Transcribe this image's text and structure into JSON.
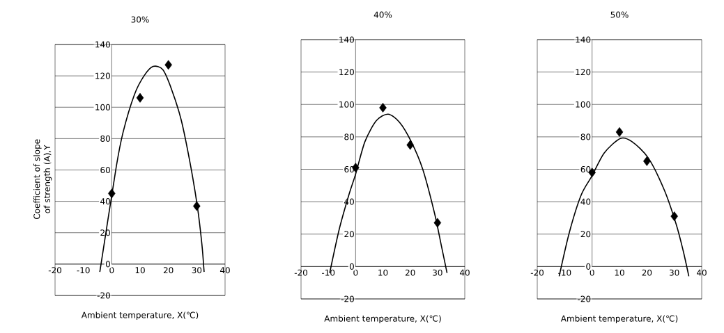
{
  "chart_data": [
    {
      "type": "scatter",
      "title": "30%",
      "xlabel": "Ambient temperature, X(℃)",
      "ylabel": "Coefficient of slope of strength (A),Y",
      "xlim": [
        -20,
        40
      ],
      "ylim": [
        -20,
        140
      ],
      "xticks": [
        -20,
        -10,
        0,
        10,
        20,
        30,
        40
      ],
      "yticks": [
        -20,
        0,
        20,
        40,
        60,
        80,
        100,
        120,
        140
      ],
      "grid": "y",
      "series": [
        {
          "type": "scatter",
          "marker": "diamond",
          "color": "#000000",
          "x": [
            0,
            10,
            20,
            30
          ],
          "values": [
            45,
            106,
            127,
            37
          ]
        },
        {
          "type": "line",
          "marker": "none",
          "line_style": "solid",
          "color": "#000000",
          "x": [
            -4.2,
            1.6,
            4,
            8,
            11.4,
            14.6,
            18,
            21,
            24.5,
            27.7,
            30.2,
            31.8,
            32.6
          ],
          "values": [
            -5,
            62,
            84,
            108,
            120,
            126,
            124,
            112,
            92,
            64,
            37,
            13,
            -5
          ]
        }
      ]
    },
    {
      "type": "scatter",
      "title": "40%",
      "xlabel": "Ambient temperature, X(℃)",
      "xlim": [
        -20,
        40
      ],
      "ylim": [
        -20,
        140
      ],
      "xticks": [
        -20,
        -10,
        0,
        10,
        20,
        30,
        40
      ],
      "yticks": [
        -20,
        0,
        20,
        40,
        60,
        80,
        100,
        120,
        140
      ],
      "grid": "y",
      "series": [
        {
          "type": "scatter",
          "marker": "diamond",
          "color": "#000000",
          "x": [
            0,
            10,
            20,
            30
          ],
          "values": [
            61,
            98,
            75,
            27
          ]
        },
        {
          "type": "line",
          "marker": "none",
          "line_style": "solid",
          "color": "#000000",
          "x": [
            -9.5,
            -6,
            -2.5,
            0,
            3.4,
            7.6,
            11.9,
            16.1,
            20.4,
            24.6,
            28.9,
            31.4,
            33.5
          ],
          "values": [
            -4,
            23,
            44,
            57,
            77,
            90,
            94,
            89,
            77,
            60,
            33,
            13,
            -4
          ]
        }
      ]
    },
    {
      "type": "scatter",
      "title": "50%",
      "xlabel": "Ambient temperature, X(℃)",
      "xlim": [
        -20,
        40
      ],
      "ylim": [
        -20,
        140
      ],
      "xticks": [
        -20,
        -10,
        0,
        10,
        20,
        30,
        40
      ],
      "yticks": [
        -20,
        0,
        20,
        40,
        60,
        80,
        100,
        120,
        140
      ],
      "grid": "y",
      "series": [
        {
          "type": "scatter",
          "marker": "diamond",
          "color": "#000000",
          "x": [
            0,
            10,
            20,
            30
          ],
          "values": [
            58,
            83,
            65,
            31
          ]
        },
        {
          "type": "line",
          "marker": "none",
          "line_style": "solid",
          "color": "#000000",
          "x": [
            -12,
            -8.3,
            -4,
            0,
            4.4,
            10.3,
            14.6,
            20.5,
            26.4,
            30.7,
            33.2,
            35.3
          ],
          "values": [
            -6,
            21,
            44,
            56,
            70,
            79,
            77,
            67,
            47,
            26,
            10,
            -6
          ]
        }
      ]
    }
  ]
}
